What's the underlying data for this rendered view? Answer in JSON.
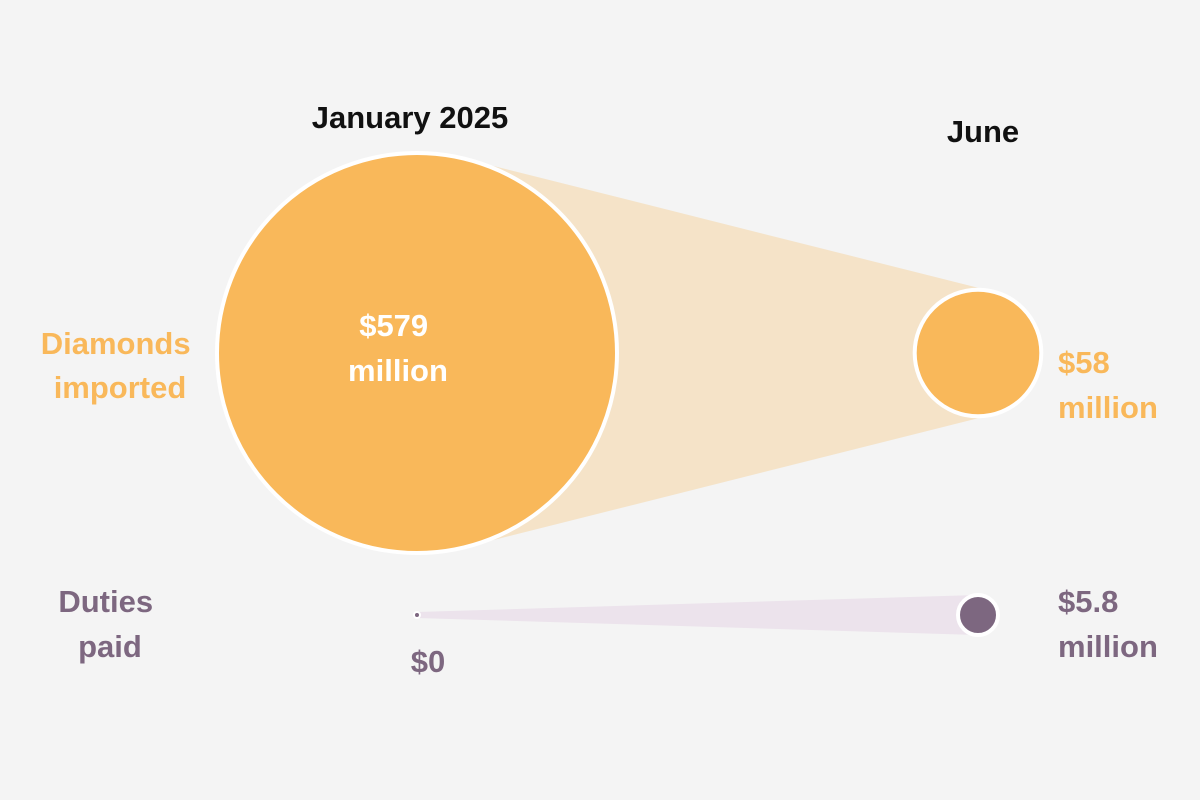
{
  "chart_data": {
    "type": "bubble-comparison",
    "periods": [
      "January 2025",
      "June"
    ],
    "series": [
      {
        "name_lines": [
          "Diamonds",
          "imported"
        ],
        "color": "#f9b85a",
        "band_color": "#f5e3c8",
        "values": [
          579,
          58
        ],
        "unit": "million USD",
        "value_labels": [
          [
            "$579",
            "million"
          ],
          [
            "$58",
            "million"
          ]
        ]
      },
      {
        "name_lines": [
          "Duties",
          "paid"
        ],
        "color": "#7d6780",
        "band_color": "#ece3ec",
        "values": [
          0,
          5.8
        ],
        "unit": "million USD",
        "value_labels": [
          [
            "$0"
          ],
          [
            "$5.8",
            "million"
          ]
        ]
      }
    ]
  },
  "colors": {
    "background": "#f4f4f4",
    "period_label": "#111111",
    "inside_label": "#ffffff",
    "outline": "#ffffff"
  }
}
